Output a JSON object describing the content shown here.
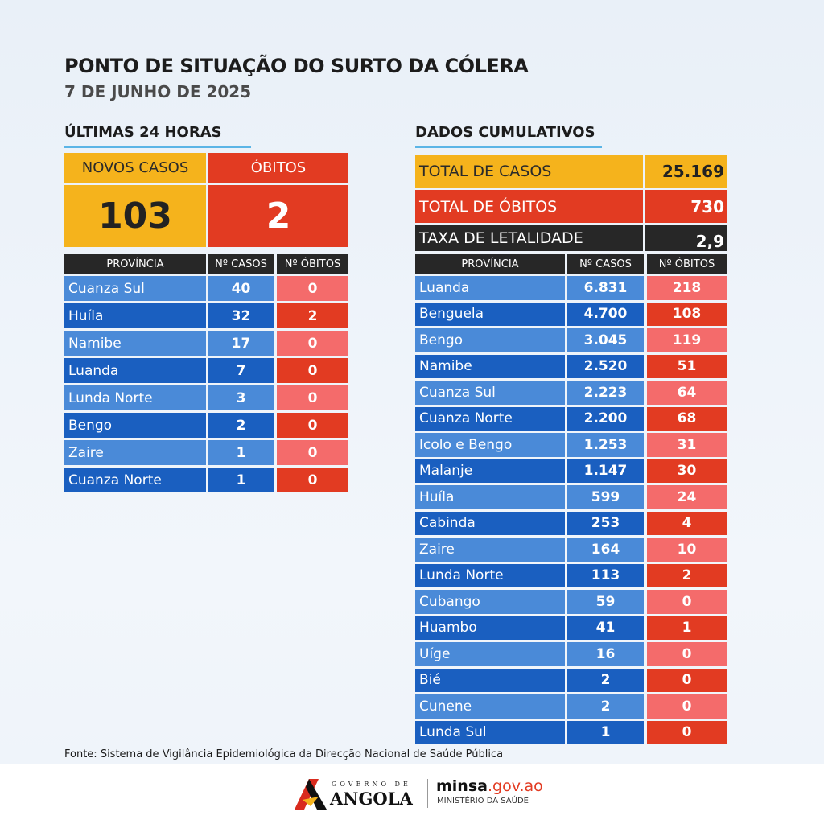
{
  "header": {
    "title": "PONTO DE SITUAÇÃO DO SURTO DA CÓLERA",
    "date": "7 DE JUNHO DE 2025"
  },
  "last24": {
    "section": "ÚLTIMAS 24 HORAS",
    "new_cases_label": "NOVOS CASOS",
    "new_cases": "103",
    "deaths_label": "ÓBITOS",
    "deaths": "2",
    "columns": [
      "PROVÍNCIA",
      "Nº CASOS",
      "Nº ÓBITOS"
    ],
    "rows": [
      [
        "Cuanza Sul",
        "40",
        "0"
      ],
      [
        "Huíla",
        "32",
        "2"
      ],
      [
        "Namibe",
        "17",
        "0"
      ],
      [
        "Luanda",
        "7",
        "0"
      ],
      [
        "Lunda Norte",
        "3",
        "0"
      ],
      [
        "Bengo",
        "2",
        "0"
      ],
      [
        "Zaire",
        "1",
        "0"
      ],
      [
        "Cuanza Norte",
        "1",
        "0"
      ]
    ]
  },
  "cumulative": {
    "section": "DADOS CUMULATIVOS",
    "total_cases_label": "TOTAL DE CASOS",
    "total_cases": "25.169",
    "total_deaths_label": "TOTAL DE ÓBITOS",
    "total_deaths": "730",
    "lethality_label": "TAXA DE LETALIDADE",
    "lethality": "2,9",
    "columns": [
      "PROVÍNCIA",
      "Nº CASOS",
      "Nº ÓBITOS"
    ],
    "rows": [
      [
        "Luanda",
        "6.831",
        "218"
      ],
      [
        "Benguela",
        "4.700",
        "108"
      ],
      [
        "Bengo",
        "3.045",
        "119"
      ],
      [
        "Namibe",
        "2.520",
        "51"
      ],
      [
        "Cuanza Sul",
        "2.223",
        "64"
      ],
      [
        "Cuanza Norte",
        "2.200",
        "68"
      ],
      [
        "Icolo e Bengo",
        "1.253",
        "31"
      ],
      [
        "Malanje",
        "1.147",
        "30"
      ],
      [
        "Huíla",
        "599",
        "24"
      ],
      [
        "Cabinda",
        "253",
        "4"
      ],
      [
        "Zaire",
        "164",
        "10"
      ],
      [
        "Lunda Norte",
        "113",
        "2"
      ],
      [
        "Cubango",
        "59",
        "0"
      ],
      [
        "Huambo",
        "41",
        "1"
      ],
      [
        "Uíge",
        "16",
        "0"
      ],
      [
        "Bié",
        "2",
        "0"
      ],
      [
        "Cunene",
        "2",
        "0"
      ],
      [
        "Lunda Sul",
        "1",
        "0"
      ]
    ]
  },
  "source": "Fonte: Sistema de Vigilância Epidemiológica da Direcção Nacional de Saúde Pública",
  "logos": {
    "gov_small": "GOVERNO DE",
    "gov_big": "ANGOLA",
    "minsa": "minsa",
    "minsa_domain": ".gov.ao",
    "ministry": "MINISTÉRIO DA SAÚDE"
  },
  "colors": {
    "yellow": "#f5b31c",
    "red": "#e23b22",
    "dark": "#272727",
    "blue_light": "#4a8ad8",
    "blue_dark": "#1a5fc0",
    "pink": "#f46b6b"
  }
}
